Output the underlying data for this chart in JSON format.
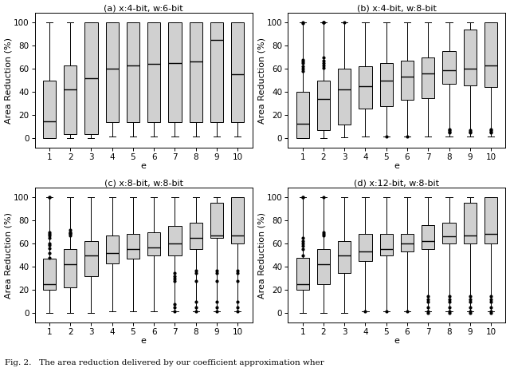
{
  "titles": [
    "(a) x:4-bit, w:6-bit",
    "(b) x:4-bit, w:8-bit",
    "(c) x:8-bit, w:8-bit",
    "(d) x:12-bit, w:8-bit"
  ],
  "xlabel": "e",
  "ylabel": "Area Reduction (%)",
  "yticks": [
    0,
    20,
    40,
    60,
    80,
    100
  ],
  "xtick_labels": [
    "1",
    "2",
    "3",
    "4",
    "5",
    "6",
    "7",
    "8",
    "9",
    "10"
  ],
  "box_facecolor": "#d0d0d0",
  "caption": "Fig. 2.   The area reduction delivered by our coefficient approximation wher",
  "subplots": {
    "a": {
      "whislo": [
        0,
        0,
        0,
        2,
        2,
        2,
        2,
        2,
        2,
        2
      ],
      "q1": [
        0,
        4,
        4,
        14,
        14,
        14,
        14,
        14,
        14,
        14
      ],
      "median": [
        15,
        42,
        52,
        60,
        63,
        64,
        65,
        66,
        85,
        55
      ],
      "q3": [
        50,
        63,
        100,
        100,
        100,
        100,
        100,
        100,
        100,
        100
      ],
      "whishi": [
        100,
        100,
        100,
        100,
        100,
        100,
        100,
        100,
        100,
        100
      ],
      "fliers": [
        [],
        [],
        [],
        [],
        [],
        [],
        [],
        [],
        [],
        []
      ]
    },
    "b": {
      "whislo": [
        0,
        0,
        1,
        2,
        2,
        2,
        2,
        2,
        2,
        2
      ],
      "q1": [
        0,
        7,
        12,
        26,
        28,
        33,
        35,
        47,
        46,
        44
      ],
      "median": [
        13,
        34,
        42,
        45,
        50,
        53,
        56,
        59,
        60,
        63
      ],
      "q3": [
        40,
        50,
        60,
        62,
        65,
        67,
        70,
        75,
        94,
        100
      ],
      "whishi": [
        100,
        100,
        100,
        100,
        100,
        100,
        100,
        100,
        100,
        100
      ],
      "fliers": [
        [
          99,
          100,
          65,
          66,
          68,
          62,
          60,
          58
        ],
        [
          100,
          100,
          100,
          65,
          63,
          61,
          67,
          70
        ],
        [
          100
        ],
        [],
        [
          2
        ],
        [
          2
        ],
        [],
        [
          5,
          6,
          7,
          8
        ],
        [
          5,
          6,
          7
        ],
        [
          5,
          6,
          7,
          8
        ]
      ]
    },
    "c": {
      "whislo": [
        0,
        0,
        0,
        2,
        2,
        2,
        2,
        2,
        2,
        2
      ],
      "q1": [
        20,
        22,
        32,
        43,
        47,
        50,
        50,
        55,
        65,
        60
      ],
      "median": [
        25,
        42,
        50,
        52,
        55,
        57,
        60,
        65,
        67,
        67
      ],
      "q3": [
        47,
        55,
        62,
        67,
        68,
        70,
        75,
        78,
        95,
        100
      ],
      "whishi": [
        100,
        100,
        100,
        100,
        100,
        100,
        100,
        100,
        100,
        100
      ],
      "fliers": [
        [
          100,
          100,
          60,
          59,
          56,
          52,
          48,
          65,
          67,
          68,
          70
        ],
        [
          70,
          72,
          67,
          68,
          69
        ],
        [],
        [],
        [],
        [],
        [
          8,
          5,
          2,
          35,
          32,
          28,
          30
        ],
        [
          37,
          35,
          28,
          10,
          5,
          2
        ],
        [
          37,
          35,
          28,
          10,
          5,
          2
        ],
        [
          37,
          35,
          28,
          10,
          5,
          2
        ]
      ]
    },
    "d": {
      "whislo": [
        0,
        0,
        0,
        2,
        2,
        2,
        2,
        2,
        2,
        2
      ],
      "q1": [
        20,
        25,
        35,
        45,
        50,
        53,
        55,
        60,
        60,
        60
      ],
      "median": [
        25,
        42,
        50,
        53,
        55,
        60,
        62,
        66,
        67,
        68
      ],
      "q3": [
        48,
        55,
        62,
        68,
        68,
        68,
        76,
        78,
        95,
        100
      ],
      "whishi": [
        100,
        100,
        100,
        100,
        100,
        100,
        100,
        100,
        100,
        100
      ],
      "fliers": [
        [
          100,
          100,
          62,
          60,
          58,
          55,
          50,
          65
        ],
        [
          100,
          70,
          68,
          67
        ],
        [],
        [
          2
        ],
        [
          2
        ],
        [
          2
        ],
        [
          10,
          12,
          15,
          0,
          2,
          5
        ],
        [
          10,
          12,
          15,
          0,
          2,
          5
        ],
        [
          10,
          12,
          15,
          0,
          2,
          5
        ],
        [
          10,
          12,
          15,
          0,
          2,
          5
        ]
      ]
    }
  }
}
